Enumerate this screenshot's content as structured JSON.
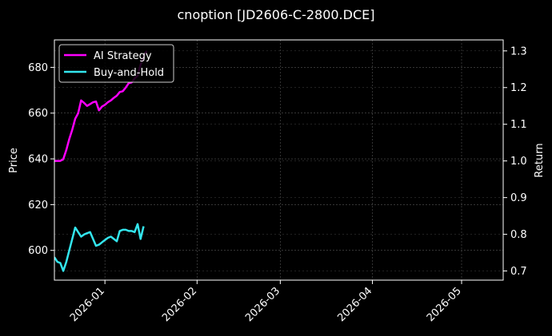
{
  "chart_data": {
    "type": "line",
    "title": "cnoption [JD2606-C-2800.DCE]",
    "xlabel": "",
    "ylabel": "Price",
    "y2label": "Return",
    "x_ticks": [
      "2026-01",
      "2026-02",
      "2026-03",
      "2026-04",
      "2026-05"
    ],
    "xlim": [
      "2025-12-15",
      "2026-05-15"
    ],
    "ylim": [
      587,
      692
    ],
    "y_ticks": [
      600,
      620,
      640,
      660,
      680
    ],
    "y2lim": [
      0.675,
      1.33
    ],
    "y2_ticks": [
      "0.7",
      "0.8",
      "0.9",
      "1.0",
      "1.1",
      "1.2",
      "1.3"
    ],
    "grid": true,
    "legend_position": "top-left",
    "background": "#000000",
    "series": [
      {
        "name": "AI Strategy",
        "color": "#ff00ff",
        "axis": "right",
        "points": [
          [
            "2025-12-15",
            1.0
          ],
          [
            "2025-12-17",
            1.0
          ],
          [
            "2025-12-18",
            1.005
          ],
          [
            "2025-12-19",
            1.03
          ],
          [
            "2025-12-20",
            1.06
          ],
          [
            "2025-12-21",
            1.085
          ],
          [
            "2025-12-22",
            1.115
          ],
          [
            "2025-12-23",
            1.13
          ],
          [
            "2025-12-24",
            1.165
          ],
          [
            "2025-12-25",
            1.158
          ],
          [
            "2025-12-26",
            1.15
          ],
          [
            "2025-12-27",
            1.155
          ],
          [
            "2025-12-28",
            1.16
          ],
          [
            "2025-12-29",
            1.162
          ],
          [
            "2025-12-30",
            1.138
          ],
          [
            "2025-12-31",
            1.148
          ],
          [
            "2026-01-01",
            1.153
          ],
          [
            "2026-01-02",
            1.16
          ],
          [
            "2026-01-03",
            1.165
          ],
          [
            "2026-01-04",
            1.172
          ],
          [
            "2026-01-05",
            1.178
          ],
          [
            "2026-01-06",
            1.188
          ],
          [
            "2026-01-07",
            1.19
          ],
          [
            "2026-01-08",
            1.2
          ],
          [
            "2026-01-09",
            1.212
          ],
          [
            "2026-01-10",
            1.214
          ],
          [
            "2026-01-11",
            1.225
          ],
          [
            "2026-01-12",
            1.232
          ],
          [
            "2026-01-13",
            1.262
          ],
          [
            "2026-01-14",
            1.284
          ],
          [
            "2026-01-15",
            1.3
          ]
        ]
      },
      {
        "name": "Buy-and-Hold",
        "color": "#33e6ee",
        "axis": "left",
        "points": [
          [
            "2025-12-15",
            597
          ],
          [
            "2025-12-16",
            595
          ],
          [
            "2025-12-17",
            594.5
          ],
          [
            "2025-12-18",
            591
          ],
          [
            "2025-12-19",
            595
          ],
          [
            "2025-12-20",
            600
          ],
          [
            "2025-12-21",
            605
          ],
          [
            "2025-12-22",
            610
          ],
          [
            "2025-12-23",
            608
          ],
          [
            "2025-12-24",
            606
          ],
          [
            "2025-12-25",
            607
          ],
          [
            "2025-12-26",
            607.5
          ],
          [
            "2025-12-27",
            608
          ],
          [
            "2025-12-28",
            605
          ],
          [
            "2025-12-29",
            602
          ],
          [
            "2025-12-30",
            602.5
          ],
          [
            "2025-12-31",
            603.5
          ],
          [
            "2026-01-01",
            604.5
          ],
          [
            "2026-01-02",
            605.5
          ],
          [
            "2026-01-03",
            606
          ],
          [
            "2026-01-04",
            605
          ],
          [
            "2026-01-05",
            604
          ],
          [
            "2026-01-06",
            608.5
          ],
          [
            "2026-01-07",
            609
          ],
          [
            "2026-01-08",
            609
          ],
          [
            "2026-01-09",
            608.5
          ],
          [
            "2026-01-10",
            608.5
          ],
          [
            "2026-01-11",
            608
          ],
          [
            "2026-01-12",
            611.5
          ],
          [
            "2026-01-13",
            605
          ],
          [
            "2026-01-14",
            610.5
          ]
        ]
      }
    ]
  }
}
